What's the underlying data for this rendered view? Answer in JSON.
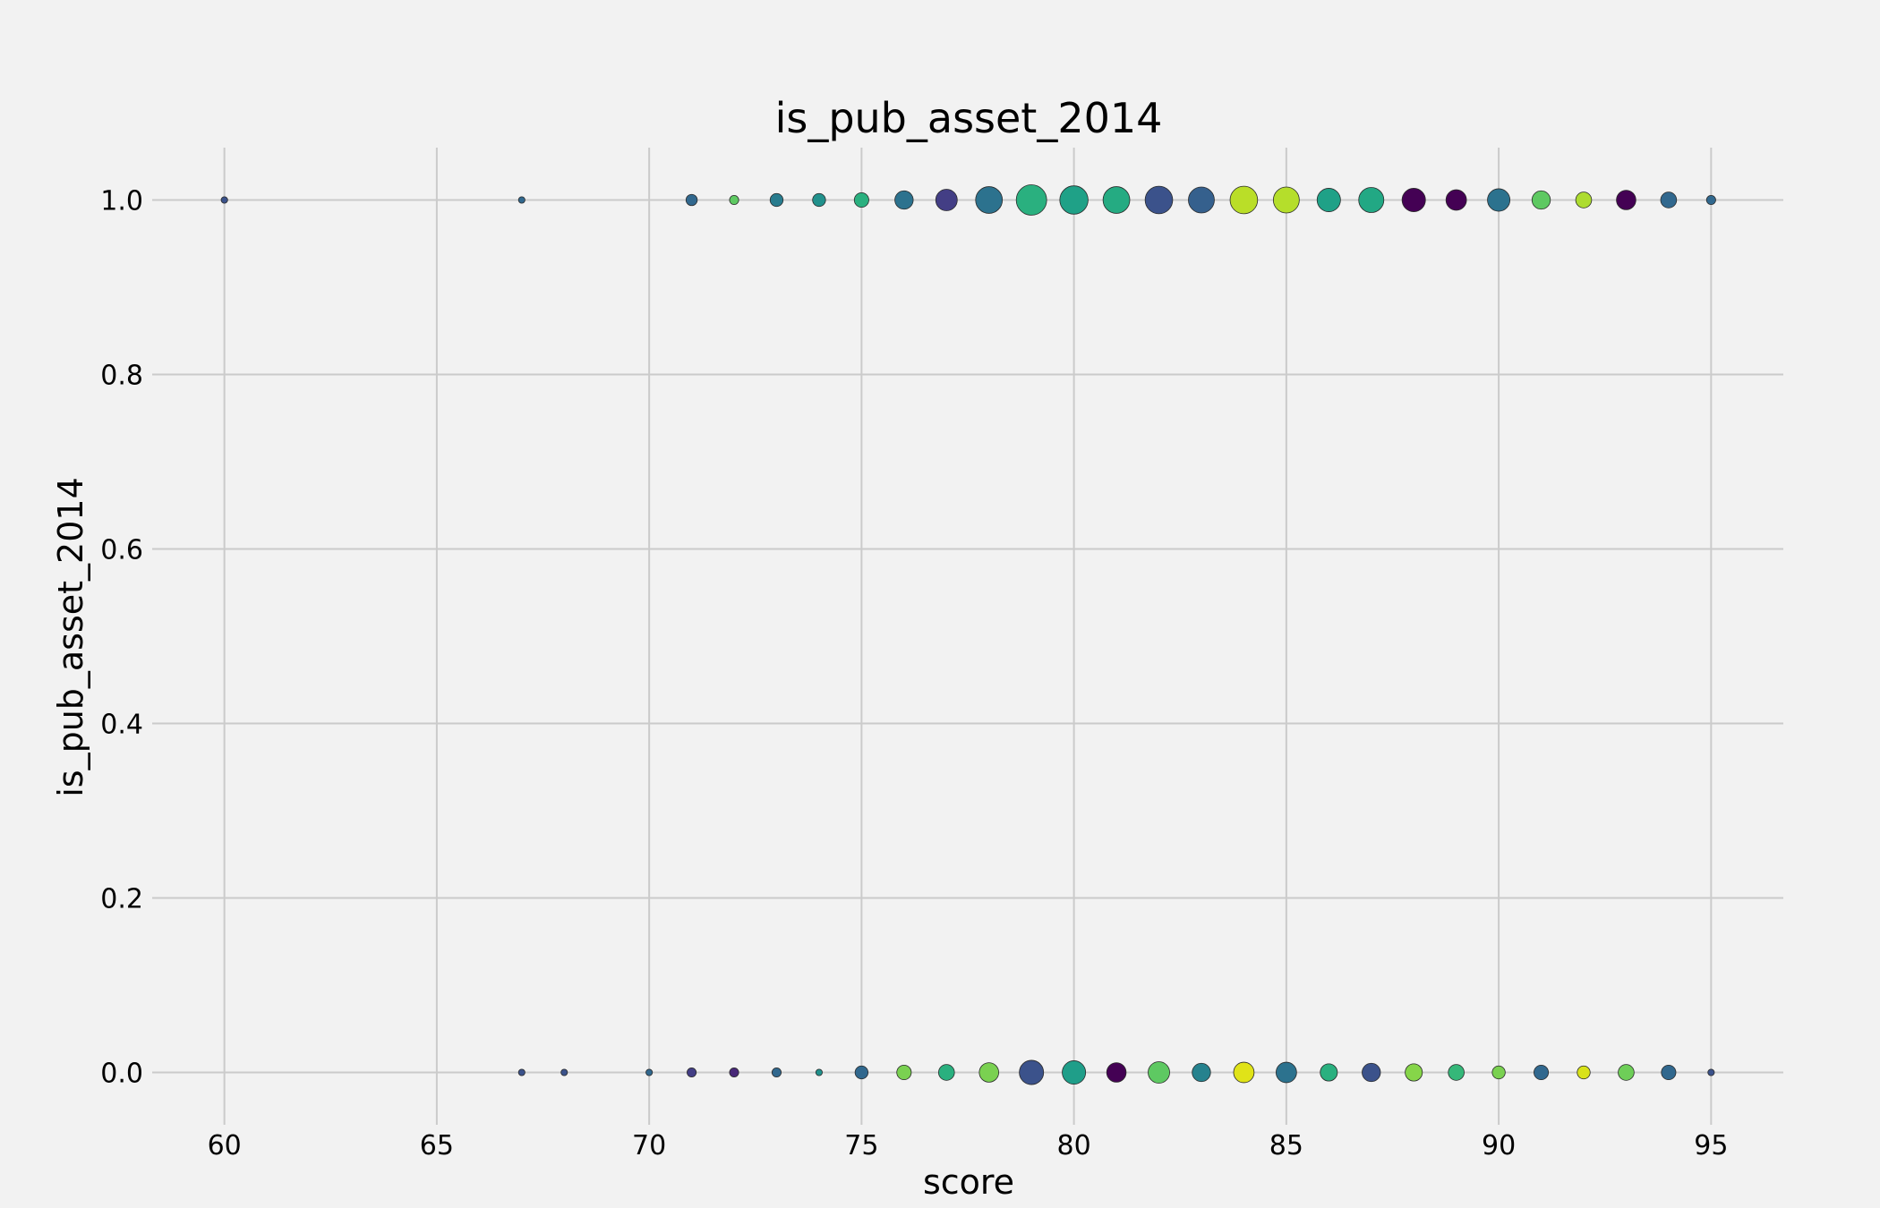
{
  "chart_data": {
    "type": "scatter",
    "title": "is_pub_asset_2014",
    "xlabel": "score",
    "ylabel": "is_pub_asset_2014",
    "xlim": [
      58.3,
      96.7
    ],
    "ylim": [
      -0.06,
      1.06
    ],
    "xticks": [
      "60",
      "65",
      "70",
      "75",
      "80",
      "85",
      "90",
      "95"
    ],
    "yticks": [
      "0.0",
      "0.2",
      "0.4",
      "0.6",
      "0.8",
      "1.0"
    ],
    "grid": true,
    "legend": "none",
    "marker_size": "count",
    "marker_color": "viridis colormap",
    "series": [
      {
        "y": 1,
        "points": [
          {
            "x": 60,
            "size": 1,
            "color": "#3b528b"
          },
          {
            "x": 67,
            "size": 1,
            "color": "#31688e"
          },
          {
            "x": 71,
            "size": 3,
            "color": "#31688e"
          },
          {
            "x": 72,
            "size": 2,
            "color": "#5ec962"
          },
          {
            "x": 73,
            "size": 4,
            "color": "#287c8e"
          },
          {
            "x": 74,
            "size": 4,
            "color": "#21918c"
          },
          {
            "x": 75,
            "size": 5,
            "color": "#2ab07f"
          },
          {
            "x": 76,
            "size": 8,
            "color": "#2c728e"
          },
          {
            "x": 77,
            "size": 11,
            "color": "#433e85"
          },
          {
            "x": 78,
            "size": 17,
            "color": "#2c728e"
          },
          {
            "x": 79,
            "size": 22,
            "color": "#2ab07f"
          },
          {
            "x": 80,
            "size": 19,
            "color": "#1fa187"
          },
          {
            "x": 81,
            "size": 17,
            "color": "#25ab82"
          },
          {
            "x": 82,
            "size": 18,
            "color": "#3b528b"
          },
          {
            "x": 83,
            "size": 16,
            "color": "#35608d"
          },
          {
            "x": 84,
            "size": 18,
            "color": "#bade28"
          },
          {
            "x": 85,
            "size": 16,
            "color": "#b5de2b"
          },
          {
            "x": 86,
            "size": 13,
            "color": "#1fa187"
          },
          {
            "x": 87,
            "size": 15,
            "color": "#22a884"
          },
          {
            "x": 88,
            "size": 13,
            "color": "#440154"
          },
          {
            "x": 89,
            "size": 10,
            "color": "#440154"
          },
          {
            "x": 90,
            "size": 12,
            "color": "#2c728e"
          },
          {
            "x": 91,
            "size": 8,
            "color": "#5ec962"
          },
          {
            "x": 92,
            "size": 6,
            "color": "#addc30"
          },
          {
            "x": 93,
            "size": 9,
            "color": "#440154"
          },
          {
            "x": 94,
            "size": 6,
            "color": "#31688e"
          },
          {
            "x": 95,
            "size": 2,
            "color": "#31688e"
          }
        ]
      },
      {
        "y": 0,
        "points": [
          {
            "x": 67,
            "size": 1,
            "color": "#3b528b"
          },
          {
            "x": 68,
            "size": 1,
            "color": "#3b528b"
          },
          {
            "x": 70,
            "size": 1,
            "color": "#31688e"
          },
          {
            "x": 71,
            "size": 2,
            "color": "#433e85"
          },
          {
            "x": 72,
            "size": 2,
            "color": "#482878"
          },
          {
            "x": 73,
            "size": 2,
            "color": "#31688e"
          },
          {
            "x": 74,
            "size": 1,
            "color": "#21918c"
          },
          {
            "x": 75,
            "size": 4,
            "color": "#31688e"
          },
          {
            "x": 76,
            "size": 5,
            "color": "#7ad151"
          },
          {
            "x": 77,
            "size": 6,
            "color": "#2ab07f"
          },
          {
            "x": 78,
            "size": 9,
            "color": "#7ad151"
          },
          {
            "x": 79,
            "size": 14,
            "color": "#3b528b"
          },
          {
            "x": 80,
            "size": 13,
            "color": "#1f9e89"
          },
          {
            "x": 81,
            "size": 9,
            "color": "#440154"
          },
          {
            "x": 82,
            "size": 11,
            "color": "#5ec962"
          },
          {
            "x": 83,
            "size": 8,
            "color": "#26828e"
          },
          {
            "x": 84,
            "size": 10,
            "color": "#e0e318"
          },
          {
            "x": 85,
            "size": 10,
            "color": "#2c728e"
          },
          {
            "x": 86,
            "size": 7,
            "color": "#2ab07f"
          },
          {
            "x": 87,
            "size": 8,
            "color": "#3b528b"
          },
          {
            "x": 88,
            "size": 7,
            "color": "#86d549"
          },
          {
            "x": 89,
            "size": 6,
            "color": "#35b779"
          },
          {
            "x": 90,
            "size": 4,
            "color": "#7ad151"
          },
          {
            "x": 91,
            "size": 5,
            "color": "#31688e"
          },
          {
            "x": 92,
            "size": 4,
            "color": "#d8e219"
          },
          {
            "x": 93,
            "size": 6,
            "color": "#6ece58"
          },
          {
            "x": 94,
            "size": 5,
            "color": "#31688e"
          },
          {
            "x": 95,
            "size": 1,
            "color": "#3b528b"
          }
        ]
      }
    ]
  }
}
